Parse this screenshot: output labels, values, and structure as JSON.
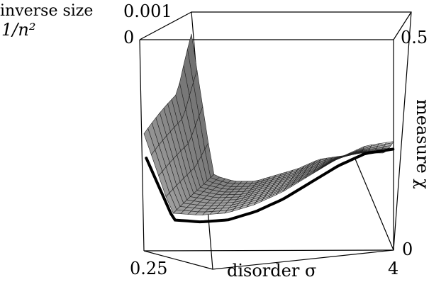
{
  "chart_data": {
    "type": "surface",
    "axes": {
      "x": {
        "label": "disorder σ",
        "tick_labels": [
          "0.25",
          "4"
        ],
        "range": [
          0.25,
          4
        ]
      },
      "y": {
        "label_line1": "inverse size",
        "label_line2": "1/n²",
        "tick_labels": [
          "0",
          "0.001"
        ],
        "range": [
          0,
          0.001
        ]
      },
      "z": {
        "label": "measure χ",
        "tick_labels": [
          "0",
          "0.5"
        ],
        "range": [
          0,
          0.5
        ]
      }
    },
    "surface": {
      "description_points": "surface z over (sigma, 1/n^2); rows sampled at inverse size from 0 (front) to 0.001 (back)",
      "sigma": [
        0.25,
        0.5,
        0.75,
        1.0,
        1.5,
        2.0,
        2.5,
        3.0,
        3.5,
        4.0
      ],
      "front_curve_chi": [
        0.28,
        0.09,
        0.085,
        0.09,
        0.11,
        0.14,
        0.18,
        0.22,
        0.25,
        0.26
      ],
      "back_curve_chi": [
        0.42,
        0.12,
        0.1,
        0.1,
        0.12,
        0.14,
        0.17,
        0.18,
        0.19,
        0.19
      ]
    },
    "highlight_curve": {
      "sigma": [
        0.25,
        0.5,
        0.75,
        1.0,
        1.5,
        2.0,
        2.5,
        3.0,
        3.5,
        4.0
      ],
      "chi": [
        0.22,
        0.07,
        0.065,
        0.07,
        0.09,
        0.12,
        0.16,
        0.2,
        0.23,
        0.24
      ]
    },
    "grid": false,
    "legend": "none"
  }
}
